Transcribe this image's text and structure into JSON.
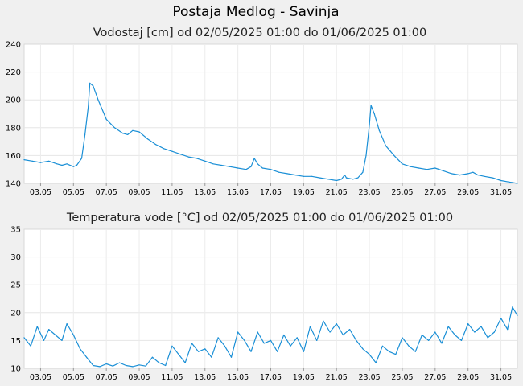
{
  "title": "Postaja Medlog - Savinja",
  "chart_data": [
    {
      "type": "line",
      "title": "Vodostaj [cm] od 02/05/2025 01:00 do 01/06/2025 01:00",
      "xlabel": "",
      "ylabel": "",
      "color": "#1a8fd6",
      "x_tick_labels": [
        "03.05",
        "05.05",
        "07.05",
        "09.05",
        "11.05",
        "13.05",
        "15.05",
        "17.05",
        "19.05",
        "21.05",
        "23.05",
        "25.05",
        "27.05",
        "29.05",
        "31.05"
      ],
      "y_ticks": [
        140,
        160,
        180,
        200,
        220,
        240
      ],
      "ylim": [
        140,
        240
      ],
      "x_range_days": [
        2.0,
        32.0
      ],
      "grid": true,
      "series": [
        {
          "x": [
            2.0,
            2.5,
            3.0,
            3.5,
            4.0,
            4.3,
            4.6,
            5.0,
            5.2,
            5.5,
            5.7,
            5.9,
            6.0,
            6.2,
            6.5,
            7.0,
            7.5,
            8.0,
            8.3,
            8.6,
            9.0,
            9.5,
            10.0,
            10.5,
            11.0,
            11.5,
            12.0,
            12.5,
            13.0,
            13.5,
            14.0,
            14.5,
            15.0,
            15.5,
            15.8,
            16.0,
            16.2,
            16.5,
            17.0,
            17.5,
            18.0,
            18.5,
            19.0,
            19.5,
            20.0,
            20.5,
            21.0,
            21.3,
            21.5,
            21.6,
            22.0,
            22.3,
            22.6,
            22.8,
            23.0,
            23.1,
            23.3,
            23.6,
            24.0,
            24.5,
            25.0,
            25.5,
            26.0,
            26.5,
            27.0,
            27.5,
            28.0,
            28.5,
            29.0,
            29.3,
            29.6,
            30.0,
            30.5,
            31.0,
            31.5,
            32.0
          ],
          "y": [
            157,
            156,
            155,
            156,
            154,
            153,
            154,
            152,
            153,
            158,
            175,
            195,
            212,
            210,
            200,
            186,
            180,
            176,
            175,
            178,
            177,
            172,
            168,
            165,
            163,
            161,
            159,
            158,
            156,
            154,
            153,
            152,
            151,
            150,
            152,
            158,
            154,
            151,
            150,
            148,
            147,
            146,
            145,
            145,
            144,
            143,
            142,
            143,
            146,
            144,
            143,
            144,
            148,
            160,
            182,
            196,
            190,
            178,
            167,
            160,
            154,
            152,
            151,
            150,
            151,
            149,
            147,
            146,
            147,
            148,
            146,
            145,
            144,
            142,
            141,
            140
          ]
        }
      ]
    },
    {
      "type": "line",
      "title": "Temperatura vode [°C] od 02/05/2025 01:00 do 01/06/2025 01:00",
      "xlabel": "",
      "ylabel": "",
      "color": "#1a8fd6",
      "x_tick_labels": [
        "03.05",
        "05.05",
        "07.05",
        "09.05",
        "11.05",
        "13.05",
        "15.05",
        "17.05",
        "19.05",
        "21.05",
        "23.05",
        "25.05",
        "27.05",
        "29.05",
        "31.05"
      ],
      "y_ticks": [
        10,
        15,
        20,
        25,
        30,
        35
      ],
      "ylim": [
        10,
        35
      ],
      "x_range_days": [
        2.0,
        32.0
      ],
      "grid": true,
      "series": [
        {
          "x": [
            2.0,
            2.4,
            2.8,
            3.2,
            3.5,
            3.9,
            4.3,
            4.6,
            5.0,
            5.4,
            5.8,
            6.2,
            6.6,
            7.0,
            7.4,
            7.8,
            8.2,
            8.6,
            9.0,
            9.4,
            9.8,
            10.2,
            10.6,
            11.0,
            11.4,
            11.8,
            12.2,
            12.6,
            13.0,
            13.4,
            13.8,
            14.2,
            14.6,
            15.0,
            15.4,
            15.8,
            16.2,
            16.6,
            17.0,
            17.4,
            17.8,
            18.2,
            18.6,
            19.0,
            19.4,
            19.8,
            20.2,
            20.6,
            21.0,
            21.4,
            21.8,
            22.2,
            22.6,
            23.0,
            23.4,
            23.8,
            24.2,
            24.6,
            25.0,
            25.4,
            25.8,
            26.2,
            26.6,
            27.0,
            27.4,
            27.8,
            28.2,
            28.6,
            29.0,
            29.4,
            29.8,
            30.2,
            30.6,
            31.0,
            31.4,
            31.7,
            32.0
          ],
          "y": [
            15.5,
            14.0,
            17.5,
            15.0,
            17.0,
            16.0,
            15.0,
            18.0,
            16.0,
            13.5,
            12.0,
            10.5,
            10.3,
            10.8,
            10.4,
            11.0,
            10.5,
            10.3,
            10.6,
            10.4,
            12.0,
            11.0,
            10.5,
            14.0,
            12.5,
            11.0,
            14.5,
            13.0,
            13.5,
            12.0,
            15.5,
            14.0,
            12.0,
            16.5,
            15.0,
            13.0,
            16.5,
            14.5,
            15.0,
            13.0,
            16.0,
            14.0,
            15.5,
            13.0,
            17.5,
            15.0,
            18.5,
            16.5,
            18.0,
            16.0,
            17.0,
            15.0,
            13.5,
            12.5,
            11.0,
            14.0,
            13.0,
            12.5,
            15.5,
            14.0,
            13.0,
            16.0,
            15.0,
            16.5,
            14.5,
            17.5,
            16.0,
            15.0,
            18.0,
            16.5,
            17.5,
            15.5,
            16.5,
            19.0,
            17.0,
            21.0,
            19.5
          ]
        }
      ]
    }
  ]
}
